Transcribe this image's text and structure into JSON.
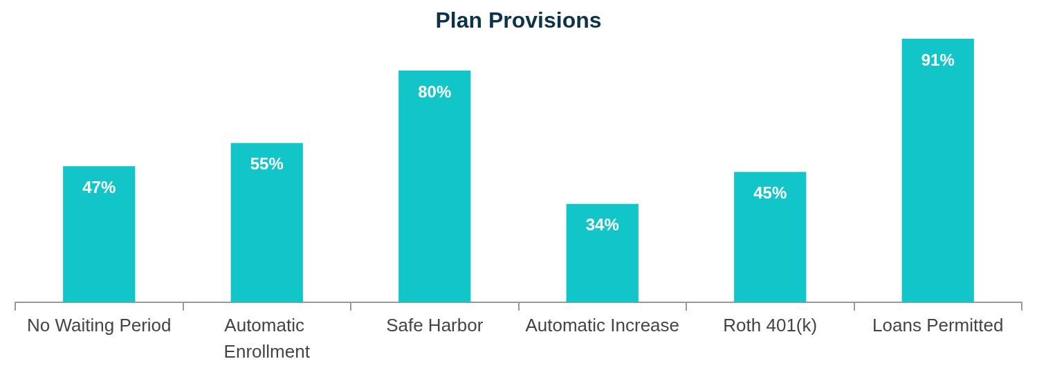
{
  "chart_data": {
    "type": "bar",
    "title": "Plan Provisions",
    "categories": [
      "No Waiting Period",
      "Automatic Enrollment",
      "Safe Harbor",
      "Automatic Increase",
      "Roth 401(k)",
      "Loans Permitted"
    ],
    "values": [
      47,
      55,
      80,
      34,
      45,
      91
    ],
    "value_labels": [
      "47%",
      "55%",
      "80%",
      "34%",
      "45%",
      "91%"
    ],
    "color": "#12c5c9",
    "tick_labels": "x"
  }
}
